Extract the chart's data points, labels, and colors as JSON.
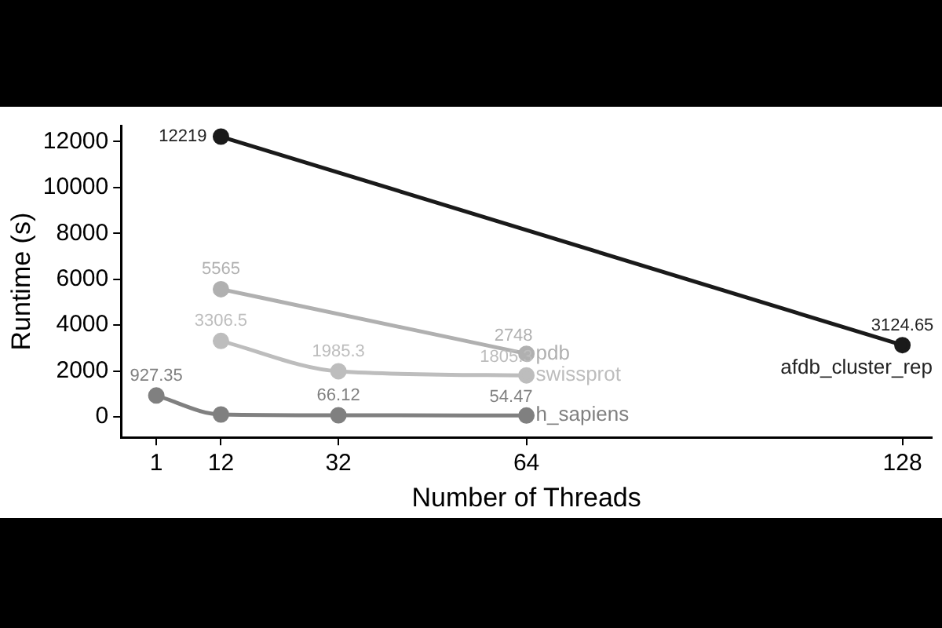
{
  "chart_data": {
    "type": "line",
    "xlabel": "Number of Threads",
    "ylabel": "Runtime (s)",
    "xlim": [
      -5,
      133
    ],
    "xticks": [
      1,
      12,
      32,
      64,
      128
    ],
    "ylim": [
      -900,
      12700
    ],
    "yticks": [
      0,
      2000,
      4000,
      6000,
      8000,
      10000,
      12000
    ],
    "grid": false,
    "legend": false,
    "marker": "circle",
    "line_style": "solid",
    "series": [
      {
        "name": "afdb_cluster_rep",
        "color": "#1a1a1a",
        "x": [
          12,
          128
        ],
        "values": [
          12219,
          3124.65
        ],
        "value_labels": [
          "12219",
          "3124.65"
        ]
      },
      {
        "name": "pdb",
        "color": "#b0b0b0",
        "x": [
          12,
          64
        ],
        "values": [
          5565,
          2748
        ],
        "value_labels": [
          "5565",
          "2748"
        ]
      },
      {
        "name": "swissprot",
        "color": "#bdbdbd",
        "x": [
          12,
          32,
          64
        ],
        "values": [
          3306.5,
          1985.3,
          1805.3
        ],
        "value_labels": [
          "3306.5",
          "1985.3",
          "1805.3"
        ]
      },
      {
        "name": "h_sapiens",
        "color": "#808080",
        "x": [
          1,
          12,
          32,
          64
        ],
        "values": [
          927.35,
          100,
          66.12,
          54.47
        ],
        "value_labels": [
          "927.35",
          null,
          "66.12",
          "54.47"
        ]
      }
    ]
  }
}
